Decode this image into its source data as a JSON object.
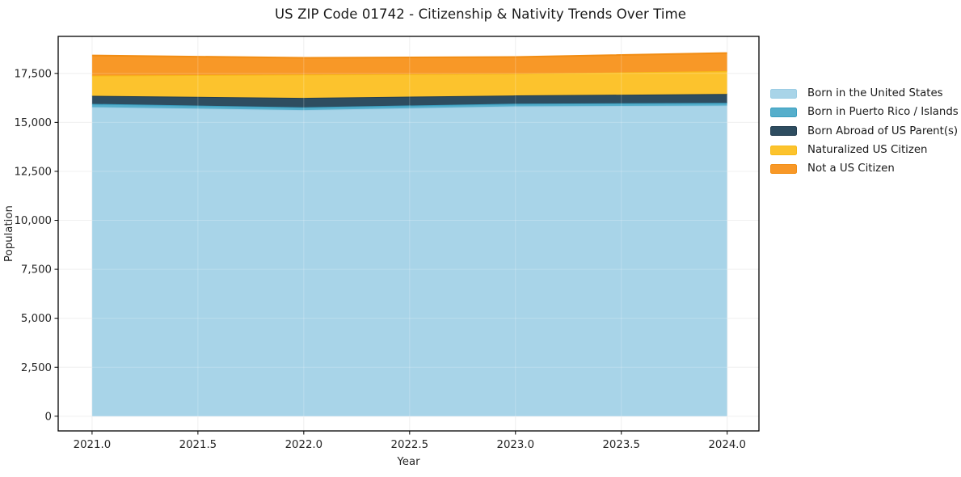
{
  "title": "US ZIP Code 01742 - Citizenship & Nativity Trends Over Time",
  "axes": {
    "x_label": "Year",
    "y_label": "Population"
  },
  "colors": {
    "series_fill": [
      "#a8d4e8",
      "#55aecb",
      "#2e4d60",
      "#fcc32d",
      "#f89827"
    ],
    "series_edge": [
      "#9bcde4",
      "#3a9fc0",
      "#243e4f",
      "#f7bb17",
      "#f28d13"
    ],
    "grid_under": "#ececec",
    "grid_over": "rgba(255,255,255,0.22)",
    "spine": "#000000",
    "tick_color": "#000000",
    "tick_text": "#262626",
    "background": "#ffffff"
  },
  "chart_data": {
    "type": "area",
    "stacked": true,
    "x": [
      2021,
      2022,
      2023,
      2024
    ],
    "series": [
      {
        "name": "Born in the United States",
        "values": [
          15780,
          15630,
          15820,
          15860
        ]
      },
      {
        "name": "Born in Puerto Rico / Islands",
        "values": [
          165,
          140,
          135,
          135
        ]
      },
      {
        "name": "Born Abroad of US Parent(s)",
        "values": [
          410,
          480,
          420,
          455
        ]
      },
      {
        "name": "Naturalized US Citizen",
        "values": [
          1030,
          1190,
          1105,
          1170
        ]
      },
      {
        "name": "Not a US Citizen",
        "values": [
          1030,
          855,
          860,
          920
        ]
      }
    ],
    "title": "US ZIP Code 01742 - Citizenship & Nativity Trends Over Time",
    "xlabel": "Year",
    "ylabel": "Population",
    "xlim": [
      2020.84,
      2024.15
    ],
    "ylim": [
      -750,
      19390
    ],
    "xticks": {
      "values": [
        2021.0,
        2021.5,
        2022.0,
        2022.5,
        2023.0,
        2023.5,
        2024.0
      ],
      "labels": [
        "2021.0",
        "2021.5",
        "2022.0",
        "2022.5",
        "2023.0",
        "2023.5",
        "2024.0"
      ]
    },
    "yticks": {
      "values": [
        0,
        2500,
        5000,
        7500,
        10000,
        12500,
        15000,
        17500
      ],
      "labels": [
        "0",
        "2,500",
        "5,000",
        "7,500",
        "10,000",
        "12,500",
        "15,000",
        "17,500"
      ]
    },
    "grid": true,
    "legend_position": "right"
  }
}
